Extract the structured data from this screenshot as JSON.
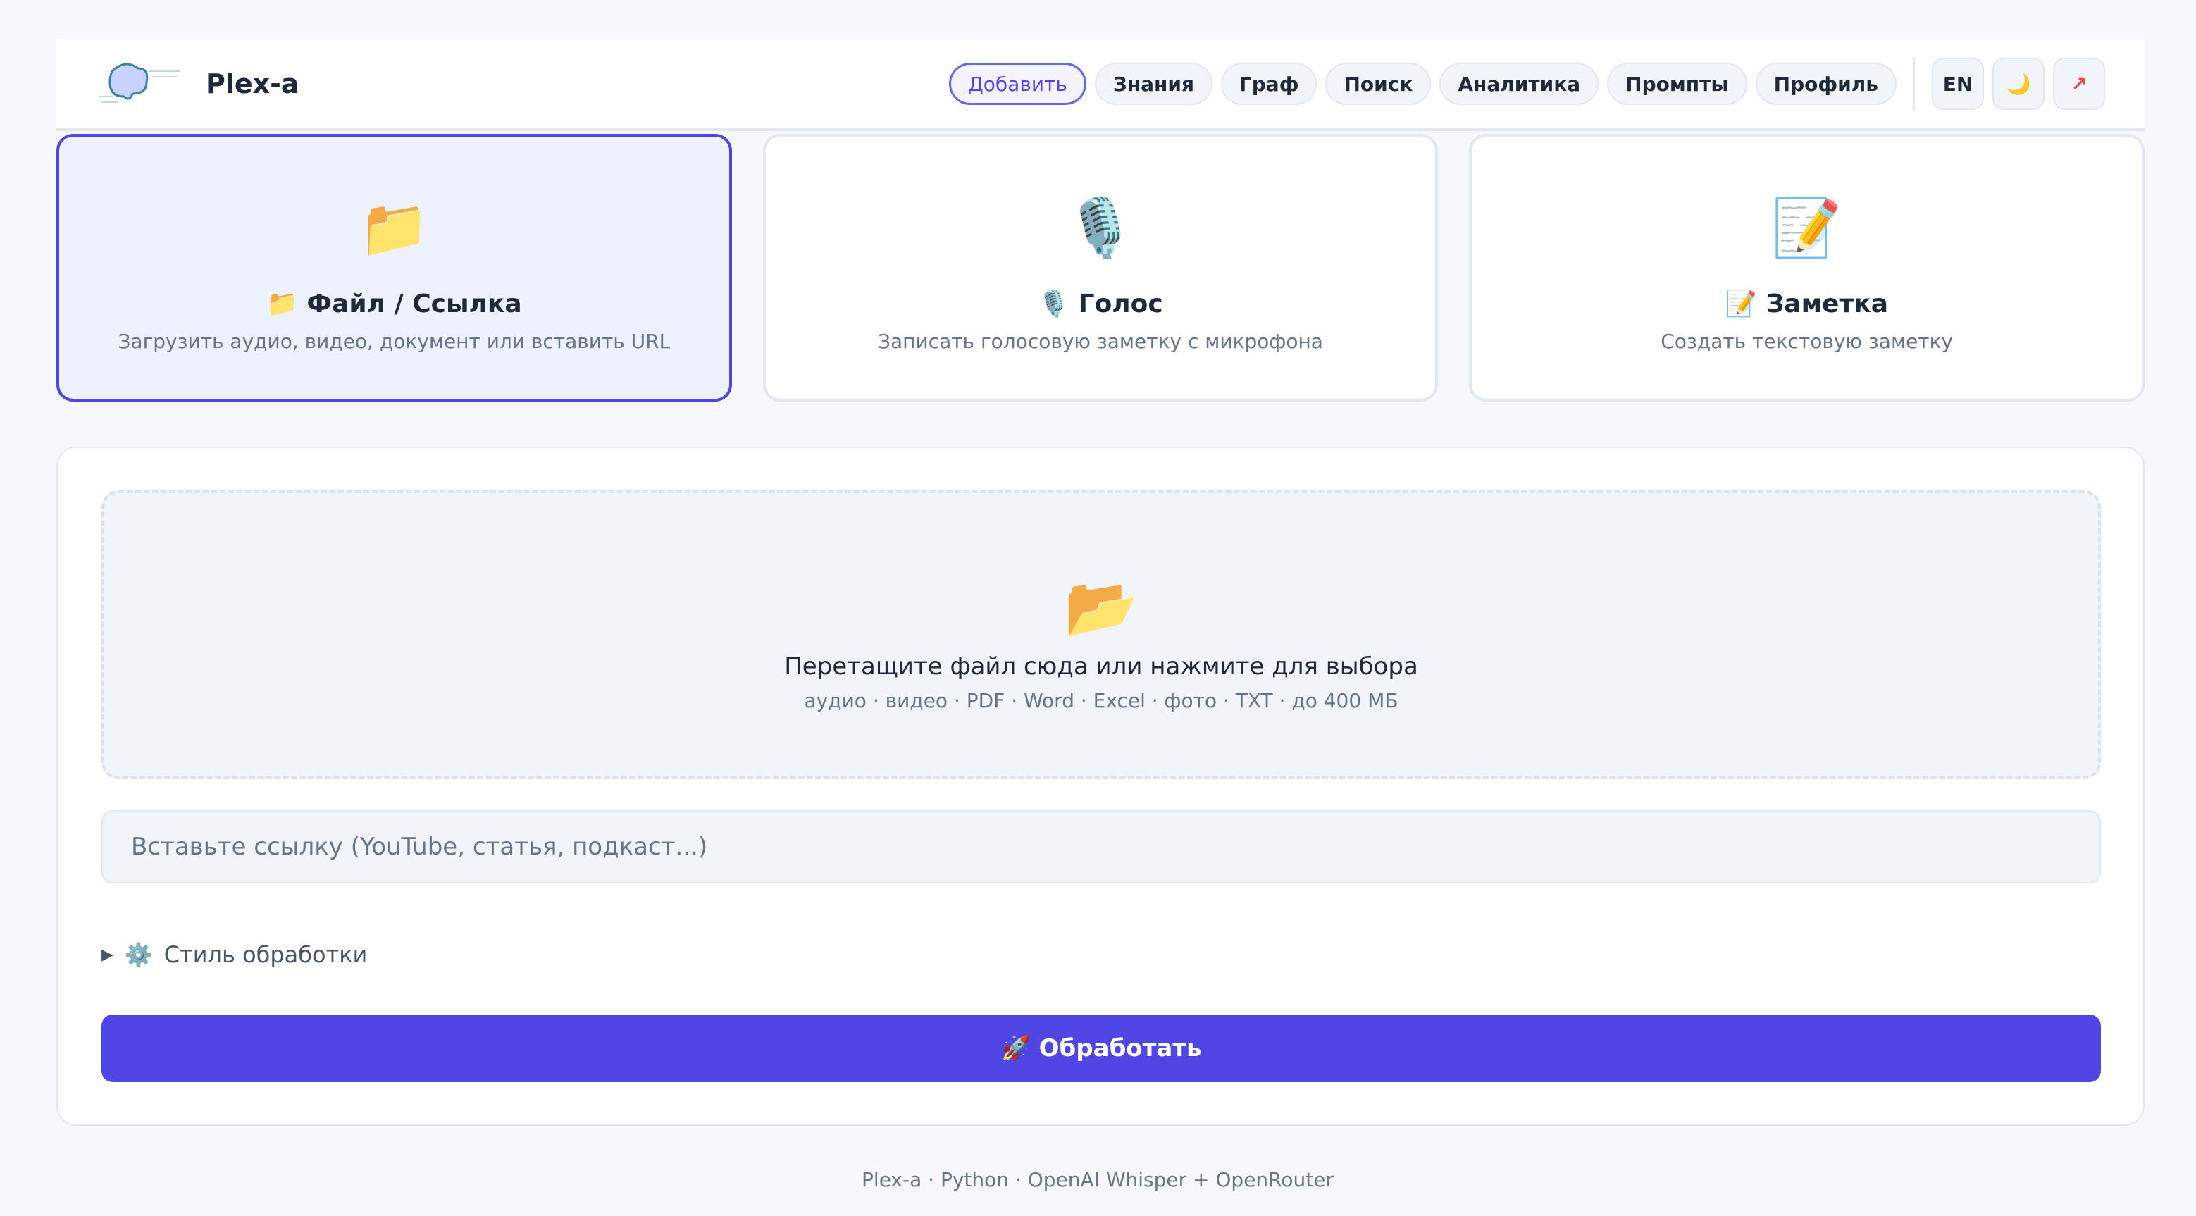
{
  "header": {
    "brand": "Plex-a",
    "nav": [
      "Добавить",
      "Знания",
      "Граф",
      "Поиск",
      "Аналитика",
      "Промпты",
      "Профиль"
    ],
    "lang": "EN",
    "theme_icon": "🌙",
    "external_icon": "↗"
  },
  "cards": [
    {
      "icon": "📁",
      "title": "📁 Файл / Ссылка",
      "desc": "Загрузить аудио, видео, документ или вставить URL"
    },
    {
      "icon": "🎙️",
      "title": "🎙️ Голос",
      "desc": "Записать голосовую заметку с микрофона"
    },
    {
      "icon": "📝",
      "title": "📝 Заметка",
      "desc": "Создать текстовую заметку"
    }
  ],
  "drop": {
    "icon": "📂",
    "main": "Перетащите файл сюда или нажмите для выбора",
    "sub": "аудио · видео · PDF · Word · Excel · фото · TXT · до 400 МБ"
  },
  "url": {
    "placeholder": "Вставьте ссылку (YouTube, статья, подкаст...)",
    "value": ""
  },
  "style_toggle": {
    "arrow": "▶",
    "icon": "⚙️",
    "label": "Стиль обработки"
  },
  "submit": "🚀 Обработать",
  "footer": "Plex-a · Python · OpenAI Whisper + OpenRouter",
  "colors": {
    "accent": "#4f46e5"
  }
}
